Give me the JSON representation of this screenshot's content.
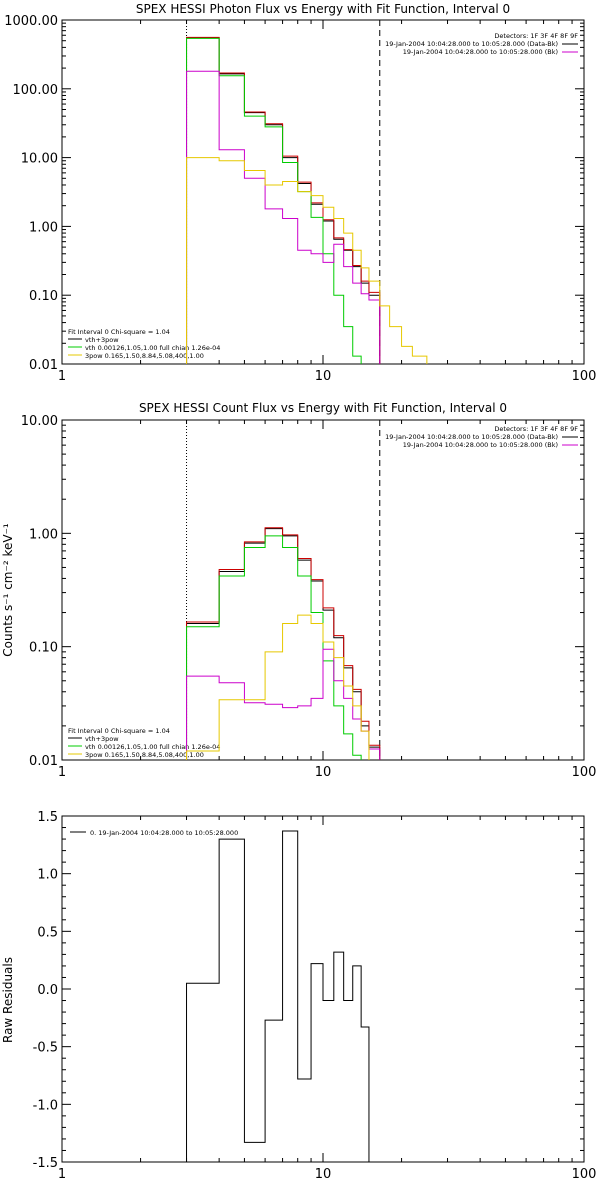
{
  "chart_data": [
    {
      "type": "line",
      "title": "SPEX HESSI Photon Flux vs Energy with Fit Function, Interval 0",
      "xlabel": "",
      "ylabel": "",
      "xscale": "log",
      "yscale": "log",
      "xlim": [
        1,
        100
      ],
      "ylim": [
        0.01,
        1000
      ],
      "xticks": [
        "1",
        "10",
        "100"
      ],
      "yticks": [
        "1000.00",
        "100.00",
        "10.00",
        "1.00",
        "0.10",
        "0.01"
      ],
      "info": {
        "detectors": "Detectors: 1F 3F 4F 8F 9F",
        "line1": "19-Jan-2004 10:04:28.000 to 10:05:28.000 (Data-Bk)",
        "line2": "19-Jan-2004 10:04:28.000 to 10:05:28.000 (Bk)"
      },
      "fit_legend": {
        "header": "Fit Interval 0   Chi-square = 1.04",
        "entries": [
          "vth+3pow",
          "vth 0.00126,1.05,1.00  full chian 1.26e-04",
          "3pow 0.165,1.50,8.84,5.08,400,1.00"
        ]
      },
      "vlines": [
        3.0,
        16.5
      ],
      "edges": [
        3.0,
        4.0,
        5.0,
        6.0,
        7.0,
        8.0,
        9.0,
        10.0,
        11.0,
        12.0,
        13.0,
        14.0,
        15.0,
        16.5,
        18.0,
        20.0,
        22.0,
        25.0
      ],
      "series": [
        {
          "color": "#000000",
          "values": [
            550,
            165,
            45,
            30,
            10,
            4.2,
            2.1,
            1.2,
            0.65,
            0.45,
            0.26,
            0.15,
            0.1
          ]
        },
        {
          "color": "#cc0000",
          "values": [
            560,
            170,
            46,
            31,
            10.5,
            4.4,
            2.2,
            1.25,
            0.68,
            0.46,
            0.27,
            0.16,
            0.11
          ]
        },
        {
          "color": "#00cc00",
          "values": [
            540,
            155,
            40,
            28,
            8.5,
            3.2,
            1.35,
            0.4,
            0.1,
            0.035,
            0.013
          ]
        },
        {
          "color": "#cc00cc",
          "values": [
            180,
            13,
            5,
            1.8,
            1.3,
            0.45,
            0.4,
            0.3,
            0.55,
            0.26,
            0.15,
            0.105,
            0.085
          ]
        },
        {
          "color": "#e6c800",
          "values": [
            10,
            9,
            6.5,
            4,
            4.5,
            3.2,
            2.8,
            1.9,
            1.3,
            0.8,
            0.45,
            0.25,
            0.16,
            0.07,
            0.035,
            0.018,
            0.013
          ]
        }
      ]
    },
    {
      "type": "line",
      "title": "SPEX HESSI Count Flux vs Energy with Fit Function, Interval 0",
      "xlabel": "",
      "ylabel": "Counts s⁻¹ cm⁻² keV⁻¹",
      "xscale": "log",
      "yscale": "log",
      "xlim": [
        1,
        100
      ],
      "ylim": [
        0.01,
        10
      ],
      "xticks": [
        "1",
        "10",
        "100"
      ],
      "yticks": [
        "10.00",
        "1.00",
        "0.10",
        "0.01"
      ],
      "info": {
        "detectors": "Detectors: 1F 3F 4F 8F 9F",
        "line1": "19-Jan-2004 10:04:28.000 to 10:05:28.000 (Data-Bk)",
        "line2": "19-Jan-2004 10:04:28.000 to 10:05:28.000 (Bk)"
      },
      "fit_legend": {
        "header": "Fit Interval 0   Chi-square = 1.04",
        "entries": [
          "vth+3pow",
          "vth 0.00126,1.05,1.00  full chian 1.26e-04",
          "3pow 0.165,1.50,8.84,5.08,400,1.00"
        ]
      },
      "vlines": [
        3.0,
        16.5
      ],
      "edges": [
        3.0,
        4.0,
        5.0,
        6.0,
        7.0,
        8.0,
        9.0,
        10.0,
        11.0,
        12.0,
        13.0,
        14.0,
        15.0,
        16.5
      ],
      "series": [
        {
          "color": "#000000",
          "values": [
            0.16,
            0.46,
            0.82,
            1.1,
            0.95,
            0.58,
            0.38,
            0.21,
            0.12,
            0.065,
            0.04,
            0.02,
            0.013
          ]
        },
        {
          "color": "#cc0000",
          "values": [
            0.165,
            0.48,
            0.84,
            1.12,
            0.97,
            0.6,
            0.39,
            0.22,
            0.125,
            0.068,
            0.042,
            0.022,
            0.0135
          ]
        },
        {
          "color": "#00cc00",
          "values": [
            0.15,
            0.42,
            0.75,
            0.95,
            0.75,
            0.42,
            0.2,
            0.075,
            0.03,
            0.017,
            0.011
          ]
        },
        {
          "color": "#cc00cc",
          "values": [
            0.055,
            0.048,
            0.032,
            0.031,
            0.029,
            0.03,
            0.035,
            0.095,
            0.05,
            0.035,
            0.023,
            0.018,
            0.0125
          ]
        },
        {
          "color": "#e6c800",
          "values": [
            0.012,
            0.034,
            0.034,
            0.09,
            0.16,
            0.19,
            0.16,
            0.11,
            0.08,
            0.045,
            0.03,
            0.018
          ]
        }
      ]
    },
    {
      "type": "line",
      "title": "",
      "xlabel": "",
      "ylabel": "Raw Residuals",
      "xscale": "log",
      "yscale": "linear",
      "xlim": [
        1,
        100
      ],
      "ylim": [
        -1.5,
        1.5
      ],
      "xticks": [
        "1",
        "10",
        "100"
      ],
      "yticks": [
        "1.5",
        "1.0",
        "0.5",
        "0.0",
        "-0.5",
        "-1.0",
        "-1.5"
      ],
      "legend": "0. 19-Jan-2004 10:04:28.000 to 10:05:28.000",
      "edges": [
        3.0,
        4.0,
        5.0,
        6.0,
        7.0,
        8.0,
        9.0,
        10.0,
        11.0,
        12.0,
        13.0,
        14.0,
        15.0,
        16.5
      ],
      "series": [
        {
          "color": "#000000",
          "values": [
            0.05,
            1.3,
            -1.33,
            -0.27,
            1.37,
            -0.78,
            0.22,
            -0.1,
            0.32,
            -0.1,
            0.2,
            -0.33
          ]
        }
      ]
    }
  ]
}
